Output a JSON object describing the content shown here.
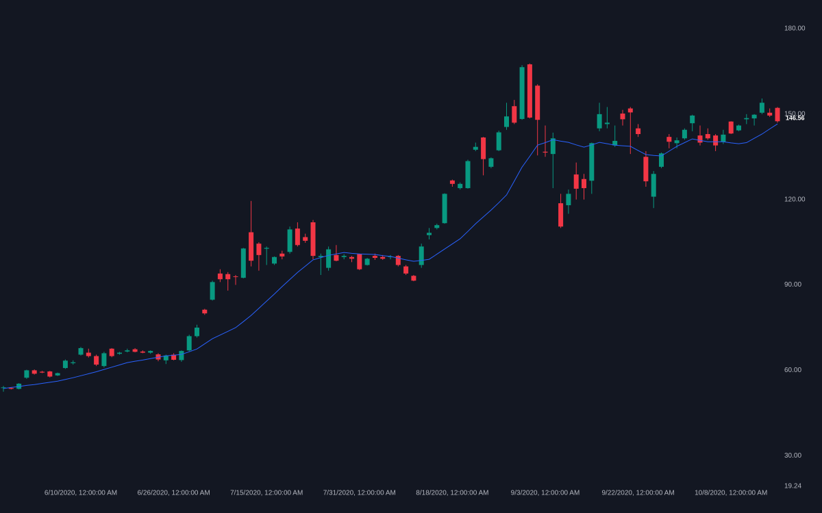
{
  "chart_data": {
    "type": "candlestick",
    "categories": [
      null,
      null,
      null,
      null,
      null,
      null,
      null,
      null,
      null,
      null,
      "6/10/2020, 12:00:00 AM",
      null,
      null,
      null,
      null,
      null,
      null,
      null,
      null,
      null,
      null,
      null,
      "6/26/2020, 12:00:00 AM",
      null,
      null,
      null,
      null,
      null,
      null,
      null,
      null,
      null,
      null,
      null,
      "7/15/2020, 12:00:00 AM",
      null,
      null,
      null,
      null,
      null,
      null,
      null,
      null,
      null,
      null,
      null,
      "7/31/2020, 12:00:00 AM",
      null,
      null,
      null,
      null,
      null,
      null,
      null,
      null,
      null,
      null,
      null,
      "8/18/2020, 12:00:00 AM",
      null,
      null,
      null,
      null,
      null,
      null,
      null,
      null,
      null,
      null,
      null,
      "9/3/2020, 12:00:00 AM",
      null,
      null,
      null,
      null,
      null,
      null,
      null,
      null,
      null,
      null,
      null,
      "9/22/2020, 12:00:00 AM",
      null,
      null,
      null,
      null,
      null,
      null,
      null,
      null,
      null,
      null,
      null,
      "10/8/2020, 12:00:00 AM",
      null,
      null,
      null,
      null,
      null,
      null
    ],
    "open": [
      54,
      53.8,
      53.5,
      57.4,
      60,
      59.5,
      59.6,
      58.2,
      60.8,
      62.5,
      65.5,
      66.2,
      65,
      61.5,
      67.6,
      65.8,
      66.6,
      67.4,
      66.6,
      66.2,
      65.6,
      63.5,
      65.5,
      63.6,
      67,
      72,
      81.3,
      84.8,
      94,
      93.8,
      93,
      92.5,
      108.5,
      104.5,
      102.7,
      97.5,
      101,
      101.6,
      109.8,
      106.8,
      112,
      99.8,
      96,
      100.5,
      99.8,
      99.8,
      100.8,
      97,
      100.2,
      99.8,
      99.8,
      100.2,
      96.5,
      93.2,
      97,
      107.5,
      110,
      111.7,
      126.7,
      124,
      124,
      137.5,
      141.8,
      131.5,
      137.3,
      145.5,
      152.8,
      148.3,
      167.5,
      160,
      136.8,
      136,
      118.7,
      118,
      128.8,
      127.2,
      126.6,
      145,
      146.5,
      139,
      150.2,
      152,
      145,
      135,
      121,
      131.5,
      142,
      139.8,
      141.5,
      146.8,
      142.5,
      143,
      142.5,
      140.3,
      147.4,
      144.3,
      148.2,
      148.5,
      150.5,
      150.5,
      152.2
    ],
    "high": [
      54.5,
      54,
      55.5,
      60.2,
      60.3,
      59.8,
      59.8,
      59.2,
      63.8,
      63.5,
      68.2,
      67.6,
      65.5,
      66.5,
      67.8,
      66.5,
      67.6,
      67.8,
      67,
      67,
      66,
      65.5,
      66,
      67,
      72.5,
      76,
      81.6,
      91.5,
      95.5,
      94.5,
      93.5,
      103,
      119.5,
      105,
      103.5,
      100,
      102,
      110.5,
      112,
      108,
      112.8,
      101,
      103.5,
      104,
      100.8,
      100.2,
      101,
      99.5,
      101,
      100.5,
      100.5,
      100.5,
      97,
      93.5,
      104.5,
      110,
      111.5,
      122.2,
      127,
      126,
      134,
      140,
      142,
      134.8,
      144.2,
      154,
      155,
      167.2,
      167.8,
      160.5,
      146,
      143.5,
      122,
      123.5,
      133,
      129,
      140,
      154,
      152.5,
      146,
      151.5,
      152.5,
      146.5,
      137,
      130,
      136.5,
      143,
      141.8,
      145,
      149.8,
      146,
      145,
      143,
      144.5,
      147.5,
      146.3,
      150,
      150,
      155.5,
      152,
      152.5
    ],
    "low": [
      52.5,
      53.3,
      53.3,
      57,
      58.5,
      59,
      57.5,
      58,
      60.5,
      62,
      65.2,
      64.5,
      61.5,
      61,
      64.6,
      65.5,
      66.3,
      66.3,
      66,
      65.8,
      63.2,
      62.2,
      63.5,
      63,
      66.7,
      71.5,
      79.5,
      84.5,
      91,
      88,
      90,
      92.3,
      96.5,
      95,
      97,
      97,
      99,
      101,
      103.5,
      104.8,
      99,
      93.5,
      95,
      98.3,
      99,
      98,
      95.2,
      96.8,
      98.8,
      98.8,
      99,
      96.5,
      93.5,
      91.3,
      96,
      106,
      109.5,
      111.5,
      124.5,
      123.5,
      123.8,
      137,
      128.5,
      131,
      137,
      144.5,
      146.5,
      148,
      148.5,
      135.5,
      135,
      124,
      110,
      115,
      120,
      120,
      122,
      144,
      145,
      138.5,
      146,
      136,
      142,
      124.5,
      117,
      131,
      138,
      138,
      141,
      144,
      139,
      141,
      137,
      139.5,
      143,
      144,
      146.5,
      146,
      150,
      149,
      147
    ],
    "close": [
      54,
      53.5,
      55.3,
      60,
      58.8,
      59.2,
      57.8,
      59,
      63.4,
      62.8,
      67.8,
      65,
      62,
      66,
      65,
      66.2,
      67,
      66.5,
      66.2,
      66.8,
      63.8,
      65.2,
      63.7,
      66.8,
      72,
      75,
      80,
      91,
      92,
      92,
      92.8,
      102.8,
      98.5,
      100.5,
      103,
      99.8,
      100,
      109.5,
      104,
      105.5,
      100.2,
      100.2,
      102.5,
      98.5,
      100.2,
      99.2,
      95.5,
      99.2,
      99.5,
      99.2,
      100,
      97,
      94,
      91.5,
      103.5,
      108.3,
      111,
      122,
      125.5,
      125.5,
      133.5,
      138.5,
      134.2,
      134.5,
      143.6,
      149.2,
      147,
      166.5,
      148.8,
      148,
      136.5,
      141.5,
      110.5,
      122,
      123.8,
      124,
      139.8,
      150,
      147,
      140.6,
      148.2,
      150.6,
      143,
      126.4,
      129,
      136.2,
      140.3,
      140.8,
      144.5,
      149.5,
      140,
      141.5,
      139,
      142.8,
      143.2,
      146,
      148.6,
      149.8,
      154,
      149.5,
      147.5
    ],
    "up_color": "#089981",
    "down_color": "#f23645",
    "ma": {
      "color": "#2962ff",
      "values": [
        53.6,
        54,
        54.3,
        54.7,
        55,
        55.4,
        55.8,
        56.2,
        56.8,
        57.4,
        58.1,
        58.8,
        59.5,
        60.3,
        61.1,
        61.9,
        62.7,
        63.2,
        63.6,
        64.1,
        64.6,
        65.1,
        65.3,
        65.6,
        66.5,
        67.5,
        69.3,
        71.1,
        72.4,
        73.7,
        75,
        77.1,
        79.3,
        81.8,
        84.3,
        86.8,
        89.4,
        91.9,
        94.4,
        96.6,
        98.8,
        99.6,
        100.4,
        100.9,
        101.4,
        101.1,
        100.9,
        100.8,
        100.7,
        100.3,
        100,
        99.4,
        98.8,
        98.3,
        98.6,
        99,
        100.8,
        102.6,
        104.4,
        106.2,
        108.8,
        111.5,
        113.9,
        116.3,
        118.9,
        121.6,
        126.5,
        131.4,
        135.2,
        139.1,
        140,
        141,
        140.5,
        140.1,
        139.2,
        138.4,
        139.2,
        140.1,
        139.6,
        139.1,
        138.9,
        138.7,
        137.2,
        135.8,
        135.5,
        135.3,
        137,
        138.7,
        140,
        141.3,
        140.8,
        140.3,
        140.3,
        140.3,
        139.9,
        139.6,
        140,
        141.5,
        143,
        144.8,
        146.56
      ]
    },
    "ylim": [
      19.24,
      190.1
    ],
    "yticks": [
      {
        "value": 180,
        "label": "180.00"
      },
      {
        "value": 150,
        "label": "150.00"
      },
      {
        "value": 120,
        "label": "120.00"
      },
      {
        "value": 90,
        "label": "90.00"
      },
      {
        "value": 60,
        "label": "60.00"
      },
      {
        "value": 30,
        "label": "30.00"
      },
      19.24
    ]
  }
}
